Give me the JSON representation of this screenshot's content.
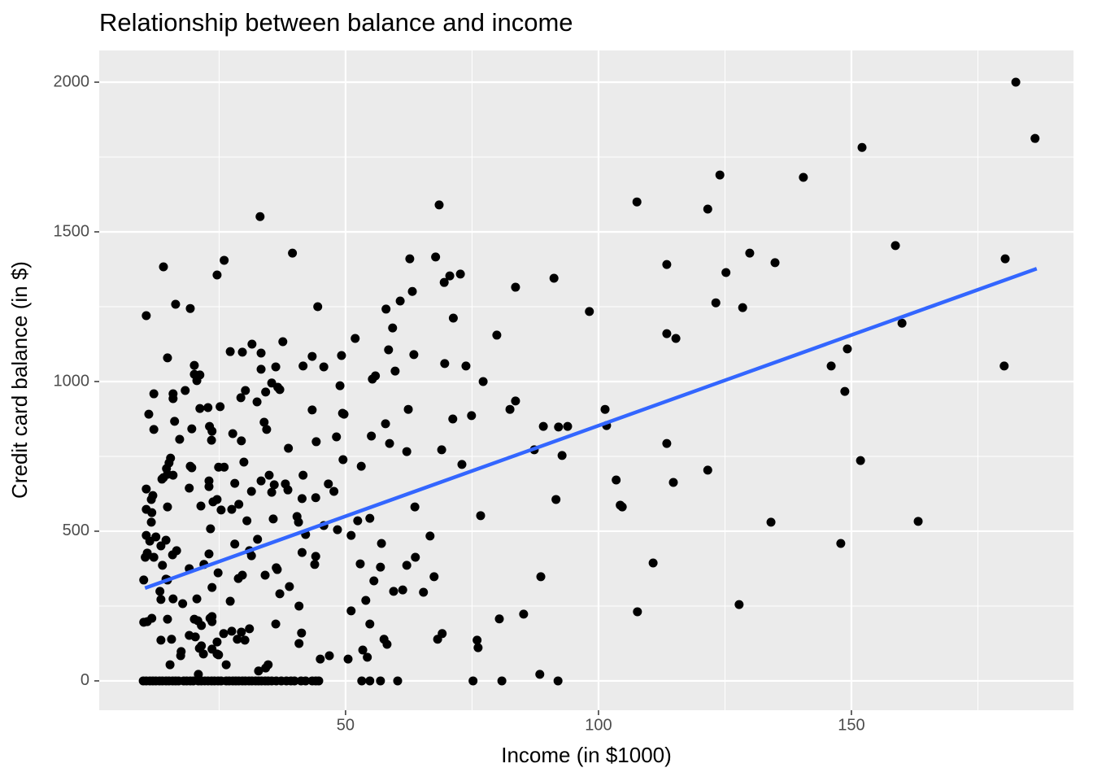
{
  "chart_data": {
    "type": "scatter",
    "title": "Relationship between balance and income",
    "x_label": "Income (in $1000)",
    "y_label": "Credit card balance (in $)",
    "xlim": [
      1.3,
      193.9
    ],
    "ylim": [
      -98,
      2106
    ],
    "xticks": [
      50,
      100,
      150
    ],
    "yticks": [
      0,
      500,
      1000,
      1500,
      2000
    ],
    "x_minor_ticks": [
      25,
      75,
      125,
      175
    ],
    "y_minor_ticks": [
      250,
      750,
      1250,
      1750
    ],
    "grid": true,
    "color": "#000000",
    "trend_color": "#3366FF",
    "trend_line": {
      "x": [
        10.35,
        186.63
      ],
      "y": [
        310,
        1377
      ]
    },
    "x": [
      182.5,
      186.3,
      152.1,
      124.0,
      140.5,
      107.6,
      68.5,
      121.6,
      33.1,
      158.7,
      129.9,
      39.5,
      180.4,
      62.7,
      67.8,
      26.0,
      134.9,
      113.5,
      14.0,
      72.7,
      70.6,
      125.2,
      24.6,
      91.2,
      69.5,
      83.6,
      63.2,
      60.8,
      123.2,
      16.4,
      44.5,
      128.5,
      19.3,
      58.0,
      98.2,
      10.6,
      71.3,
      160.0,
      59.3,
      79.9,
      113.5,
      115.3,
      51.9,
      31.5,
      27.2,
      29.6,
      37.6,
      33.3,
      58.5,
      149.2,
      63.5,
      49.2,
      43.4,
      14.8,
      69.6,
      41.6,
      20.1,
      36.2,
      45.7,
      73.8,
      146.0,
      180.2,
      33.3,
      59.8,
      20.1,
      21.2,
      55.9,
      55.3,
      20.6,
      77.2,
      35.4,
      48.9,
      36.6,
      18.3,
      37.0,
      30.2,
      148.7,
      12.1,
      34.2,
      15.9,
      15.9,
      32.5,
      83.6,
      29.3,
      82.5,
      43.4,
      62.4,
      101.3,
      25.2,
      22.8,
      21.2,
      49.4,
      49.7,
      11.1,
      74.9,
      71.2,
      57.9,
      16.2,
      33.9,
      23.1,
      101.6,
      89.1,
      92.1,
      93.9,
      12.1,
      34.4,
      19.6,
      23.6,
      48.2,
      55.1,
      27.7,
      17.2,
      23.5,
      44.2,
      113.5,
      58.7,
      29.4,
      38.7,
      87.3,
      69.0,
      62.1,
      92.8,
      15.4,
      151.8,
      49.5,
      73.0,
      15.1,
      29.9,
      19.3,
      53.1,
      14.6,
      24.9,
      26.0,
      121.6,
      19.6,
      14.8,
      34.9,
      14.0,
      15.9,
      103.5,
      13.7,
      23.0,
      41.6,
      28.1,
      46.6,
      33.3,
      38.1,
      114.8,
      35.9,
      19.1,
      38.6,
      44.1,
      23.0,
      10.6,
      35.4,
      31.4,
      41.4,
      11.9,
      11.6,
      24.6,
      47.7,
      91.6,
      23.8,
      104.3,
      63.7,
      104.7,
      14.8,
      21.4,
      28.9,
      25.4,
      10.6,
      27.5,
      40.4,
      76.7,
      11.7,
      54.8,
      52.4,
      30.5,
      35.7,
      40.7,
      134.1,
      163.2,
      11.6,
      45.7,
      23.3,
      48.4,
      42.1,
      51.1,
      10.6,
      14.5,
      32.6,
      28.1,
      11.3,
      57.1,
      147.9,
      12.5,
      66.7,
      13.5,
      16.6,
      41.4,
      31.0,
      10.8,
      23.0,
      12.1,
      15.8,
      31.4,
      44.1,
      63.8,
      10.4,
      52.9,
      62.1,
      110.8,
      13.8,
      56.9,
      43.9,
      19.1,
      36.3,
      22.0,
      36.5,
      67.5,
      88.6,
      29.6,
      34.1,
      14.5,
      24.8,
      10.1,
      28.8,
      55.6,
      14.8,
      38.9,
      23.6,
      59.5,
      61.3,
      65.4,
      13.3,
      37.0,
      13.5,
      15.9,
      20.6,
      127.8,
      27.2,
      17.8,
      54.0,
      40.8,
      51.1,
      107.7,
      85.2,
      23.6,
      23.2,
      80.4,
      10.8,
      20.1,
      20.8,
      10.1,
      14.8,
      11.7,
      36.2,
      54.8,
      23.6,
      21.5,
      31.0,
      69.1,
      29.4,
      27.5,
      41.3,
      25.9,
      19.1,
      20.3,
      13.5,
      15.6,
      57.6,
      76.0,
      68.2,
      28.6,
      30.1,
      24.6,
      40.8,
      21.5,
      58.2,
      76.2,
      21.1,
      23.6,
      17.5,
      53.4,
      24.6,
      46.8,
      17.4,
      24.9,
      54.3,
      21.9,
      50.5,
      45.0,
      15.3,
      26.4,
      34.7,
      34.2,
      32.8,
      88.4,
      20.9,
      10.0,
      10.6,
      11.3,
      11.9,
      12.5,
      13.2,
      13.8,
      14.5,
      15.1,
      15.8,
      16.4,
      17.0,
      18.0,
      18.6,
      19.3,
      19.9,
      20.9,
      21.5,
      22.2,
      22.8,
      23.5,
      24.1,
      24.8,
      25.4,
      26.4,
      27.0,
      27.7,
      28.3,
      28.9,
      29.6,
      30.2,
      30.9,
      31.5,
      32.2,
      32.8,
      33.4,
      34.1,
      34.7,
      35.4,
      36.3,
      37.3,
      38.3,
      39.2,
      39.9,
      41.2,
      42.1,
      43.4,
      44.1,
      44.7,
      53.2,
      54.8,
      56.9,
      60.3,
      75.2,
      80.9,
      92.0
    ],
    "y": [
      2000,
      1812,
      1782,
      1690,
      1682,
      1600,
      1590,
      1576,
      1551,
      1454,
      1429,
      1429,
      1410,
      1410,
      1416,
      1405,
      1397,
      1391,
      1383,
      1359,
      1353,
      1364,
      1356,
      1345,
      1331,
      1315,
      1301,
      1269,
      1263,
      1258,
      1250,
      1247,
      1244,
      1242,
      1234,
      1220,
      1212,
      1195,
      1179,
      1155,
      1160,
      1144,
      1144,
      1125,
      1100,
      1098,
      1133,
      1095,
      1106,
      1109,
      1090,
      1087,
      1084,
      1079,
      1060,
      1052,
      1054,
      1049,
      1049,
      1052,
      1052,
      1052,
      1041,
      1035,
      1024,
      1022,
      1019,
      1008,
      1003,
      1000,
      995,
      986,
      981,
      970,
      973,
      970,
      967,
      959,
      965,
      959,
      943,
      932,
      935,
      946,
      907,
      905,
      907,
      907,
      916,
      913,
      910,
      894,
      891,
      891,
      886,
      875,
      859,
      867,
      864,
      850,
      853,
      850,
      848,
      850,
      840,
      840,
      842,
      834,
      815,
      818,
      826,
      807,
      804,
      799,
      793,
      793,
      802,
      777,
      772,
      772,
      766,
      753,
      744,
      736,
      739,
      723,
      728,
      731,
      717,
      717,
      709,
      714,
      714,
      704,
      712,
      690,
      687,
      679,
      687,
      671,
      674,
      668,
      687,
      660,
      658,
      668,
      658,
      663,
      655,
      644,
      638,
      612,
      649,
      641,
      630,
      633,
      609,
      619,
      606,
      606,
      633,
      606,
      598,
      587,
      581,
      581,
      581,
      584,
      590,
      571,
      573,
      573,
      549,
      552,
      562,
      543,
      535,
      535,
      541,
      530,
      530,
      533,
      530,
      519,
      508,
      505,
      489,
      486,
      486,
      470,
      473,
      457,
      467,
      459,
      459,
      481,
      484,
      451,
      435,
      429,
      435,
      427,
      424,
      413,
      421,
      418,
      416,
      413,
      413,
      391,
      386,
      394,
      386,
      380,
      389,
      375,
      378,
      389,
      372,
      348,
      348,
      353,
      353,
      340,
      361,
      337,
      342,
      334,
      337,
      315,
      312,
      299,
      304,
      296,
      299,
      291,
      272,
      274,
      274,
      255,
      266,
      258,
      269,
      250,
      234,
      231,
      223,
      215,
      209,
      207,
      198,
      206,
      201,
      196,
      206,
      209,
      190,
      190,
      198,
      185,
      174,
      158,
      163,
      166,
      160,
      158,
      152,
      147,
      136,
      139,
      139,
      136,
      139,
      139,
      136,
      130,
      125,
      117,
      122,
      111,
      109,
      106,
      98,
      103,
      90,
      84,
      84,
      87,
      79,
      90,
      73,
      73,
      54,
      54,
      54,
      43,
      33,
      22,
      22,
      0,
      0,
      0,
      0,
      0,
      0,
      0,
      0,
      0,
      0,
      0,
      0,
      0,
      0,
      0,
      0,
      0,
      0,
      0,
      0,
      0,
      0,
      0,
      0,
      0,
      0,
      0,
      0,
      0,
      0,
      0,
      0,
      0,
      0,
      0,
      0,
      0,
      0,
      0,
      0,
      0,
      0,
      0,
      0,
      0,
      0,
      0,
      0,
      0,
      0,
      0,
      0,
      0,
      0,
      0,
      0
    ]
  }
}
